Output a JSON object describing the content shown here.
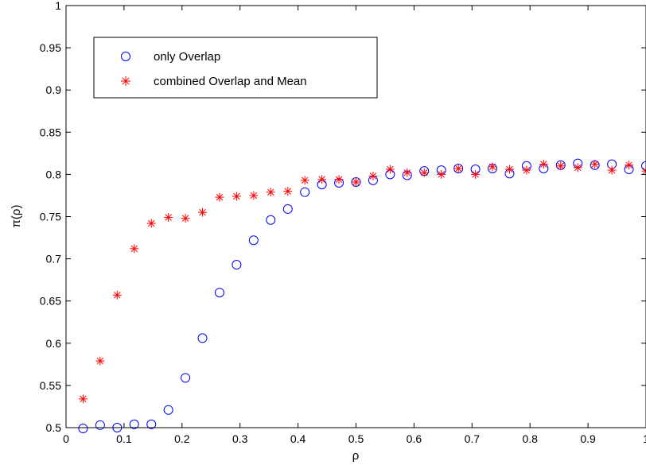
{
  "chart_data": {
    "type": "scatter",
    "xlabel": "ρ",
    "ylabel": "π(ρ)",
    "xlim": [
      0,
      1
    ],
    "ylim": [
      0.5,
      1
    ],
    "x_ticks": [
      0,
      0.1,
      0.2,
      0.3,
      0.4,
      0.5,
      0.6,
      0.7,
      0.8,
      0.9,
      1
    ],
    "x_tick_labels": [
      "0",
      "0.1",
      "0.2",
      "0.3",
      "0.4",
      "0.5",
      "0.6",
      "0.7",
      "0.8",
      "0.9",
      "1"
    ],
    "y_ticks": [
      0.5,
      0.55,
      0.6,
      0.65,
      0.7,
      0.75,
      0.8,
      0.85,
      0.9,
      0.95,
      1
    ],
    "y_tick_labels": [
      "0.5",
      "0.55",
      "0.6",
      "0.65",
      "0.7",
      "0.75",
      "0.8",
      "0.85",
      "0.9",
      "0.95",
      "1"
    ],
    "grid": false,
    "legend_position": "top-left",
    "series": [
      {
        "name": "only Overlap",
        "marker": "circle",
        "color": "#0000ff",
        "x": [
          0.0294,
          0.0588,
          0.0882,
          0.1176,
          0.1471,
          0.1765,
          0.2059,
          0.2353,
          0.2647,
          0.2941,
          0.3235,
          0.3529,
          0.3824,
          0.4118,
          0.4412,
          0.4706,
          0.5,
          0.5294,
          0.5588,
          0.5882,
          0.6176,
          0.6471,
          0.6765,
          0.7059,
          0.7353,
          0.7647,
          0.7941,
          0.8235,
          0.8529,
          0.8824,
          0.9118,
          0.9412,
          0.9706,
          1.0
        ],
        "y": [
          0.499,
          0.503,
          0.5,
          0.504,
          0.504,
          0.521,
          0.559,
          0.606,
          0.66,
          0.693,
          0.722,
          0.746,
          0.759,
          0.779,
          0.788,
          0.79,
          0.791,
          0.793,
          0.8,
          0.799,
          0.804,
          0.805,
          0.807,
          0.806,
          0.807,
          0.801,
          0.81,
          0.807,
          0.811,
          0.813,
          0.811,
          0.812,
          0.806,
          0.81
        ]
      },
      {
        "name": "combined Overlap and Mean",
        "marker": "asterisk",
        "color": "#ff0000",
        "x": [
          0.0294,
          0.0588,
          0.0882,
          0.1176,
          0.1471,
          0.1765,
          0.2059,
          0.2353,
          0.2647,
          0.2941,
          0.3235,
          0.3529,
          0.3824,
          0.4118,
          0.4412,
          0.4706,
          0.5,
          0.5294,
          0.5588,
          0.5882,
          0.6176,
          0.6471,
          0.6765,
          0.7059,
          0.7353,
          0.7647,
          0.7941,
          0.8235,
          0.8529,
          0.8824,
          0.9118,
          0.9412,
          0.9706,
          1.0
        ],
        "y": [
          0.534,
          0.579,
          0.657,
          0.712,
          0.742,
          0.749,
          0.748,
          0.755,
          0.773,
          0.774,
          0.775,
          0.779,
          0.78,
          0.793,
          0.794,
          0.794,
          0.791,
          0.798,
          0.806,
          0.802,
          0.802,
          0.8,
          0.807,
          0.8,
          0.809,
          0.806,
          0.805,
          0.812,
          0.81,
          0.808,
          0.812,
          0.805,
          0.811,
          0.804
        ]
      }
    ]
  }
}
